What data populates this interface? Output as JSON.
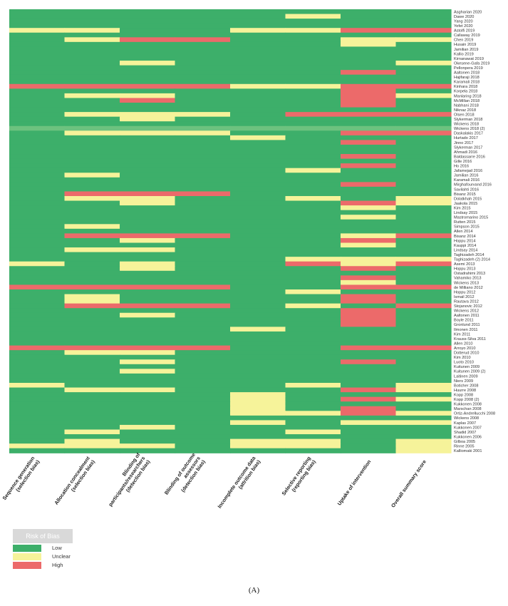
{
  "chart_data": {
    "type": "heatmap",
    "title": "",
    "columns": [
      "Sequence generation (selection bias)",
      "Allocation concealment (selection bias)",
      "Blinding of participants/researchers (detection bias)",
      "Blinding of outcome assessors (detection bias)",
      "Incomplete outcome data (attrition bias)",
      "Selective reporting (reporting bias)",
      "Uptake of intervention",
      "Overall summary score"
    ],
    "studies": [
      "Asgharian 2020",
      "Dawe 2020",
      "Yang 2020",
      "Yefet 2020",
      "Astolfi 2019",
      "Callaway 2019",
      "Chen 2019",
      "Husain 2019",
      "Jamilian 2019",
      "Kallio 2019",
      "Kirnanawat 2019",
      "Okesene-Gafa 2019",
      "Pellonpera 2019",
      "Aaltonen 2018",
      "Hajifaraji 2018",
      "Karamali 2018",
      "Kinhara 2018",
      "Korpela 2018",
      "Manlaring 2018",
      "McMillan 2018",
      "Nabhani 2018",
      "Niknaz 2018",
      "Olsen 2018",
      "Slykerman 2018",
      "Wickens 2018",
      "Wickens 2018 (2)",
      "Daskalakis 2017",
      "Hurtado 2017",
      "Jinno 2017",
      "Slykerman 2017",
      "Ahmadi 2016",
      "Baldassarre 2016",
      "Gille 2016",
      "Ho 2016",
      "Jafarnejad 2016",
      "Jamilian 2016",
      "Karamali 2016",
      "Mirghafourvand 2016",
      "Savilahti 2016",
      "Bisanz 2015",
      "Dolatkhah 2015",
      "Jaakola 2015",
      "Kim 2015",
      "Lindsay 2015",
      "Mastromarino 2015",
      "Rutten 2015",
      "Simpson 2015",
      "Allen 2014",
      "Bisanz 2014",
      "Hoppu 2014",
      "Kauppi 2014",
      "Lindsay 2014",
      "Taghizadeh 2014",
      "Taghizadeh (2) 2014",
      "Asemi 2013",
      "Hoppu 2013",
      "Ostadrahimi 2013",
      "Vahamiko 2013",
      "Wickens 2013",
      "de Milliano 2012",
      "Hoppu 2012",
      "Ismail 2012",
      "Rautava 2012",
      "Stojanovic 2012",
      "Wickens 2012",
      "Aaltonen 2011",
      "Boyle 2011",
      "Gronlund 2011",
      "Ilmonen 2011",
      "Kim 2011",
      "Krauss-Silva 2011",
      "Allen 2010",
      "Arroyo 2010",
      "Dotterud 2010",
      "Kim 2010",
      "Luoto 2010",
      "Kuitunen 2009",
      "Kuitunen 2009 (2)",
      "Laitinen 2009",
      "Niers 2009",
      "Boticher 2008",
      "Huurre 2008",
      "Kopp 2008",
      "Kopp 2008 (2)",
      "Kukkonen 2008",
      "Marschan 2008",
      "Ortiz-Andrellucchi 2008",
      "Wickens 2008",
      "Kaplas 2007",
      "Kukkonen 2007",
      "Shadid 2007",
      "Kukkonen 2006",
      "Gilboa 2005",
      "Rinne 2005",
      "Kalliomaki 2001"
    ],
    "categories": [
      "Low",
      "Unclear",
      "High"
    ],
    "colors": {
      "Low": "#3daf6a",
      "Unclear": "#f6f39a",
      "High": "#ec6a6a",
      "Highlight": "#6dc27f"
    },
    "highlighted_row": 25,
    "rows": [
      "LLLLLLLL",
      "LLLLLULL",
      "LLLLLLLL",
      "LLLLLLLL",
      "UULLUUHH",
      "LLLLLLLL",
      "LUHHLLUU",
      "LLLLLLUL",
      "LLLLLLLL",
      "LLLLLLLL",
      "LLLLLLLL",
      "LLULLLLU",
      "LLLLLLLL",
      "LLLLLLHL",
      "LLLLLLLL",
      "LLLLLLLL",
      "HHHHUUHH",
      "LLLLLLHL",
      "LUULLLHU",
      "LLHLLLHL",
      "LLLLLLHL",
      "LLLLLLLL",
      "LUUULHHH",
      "LLULLLLL",
      "LLLLLLLL",
      "LLLLLLLL",
      "LUUULLHH",
      "LLLLULLL",
      "LLLLLLHL",
      "LLLLLLLL",
      "LLLLLLLL",
      "LLLLLLHL",
      "LLLLLLLL",
      "LLLLLLHL",
      "LLLLLULL",
      "LULLLLLL",
      "LLLLLLLL",
      "LLLLLLHL",
      "LLLLLLLL",
      "LHHHLLLL",
      "LUULLULU",
      "LLULLLHU",
      "LLLLLLUL",
      "LLLLLLLL",
      "LLLLLLUL",
      "LLLLLLLL",
      "LULLLLLL",
      "LLLLLLLL",
      "LHHHLLUH",
      "LLULLLHL",
      "LLLLLLUL",
      "LUULLLLL",
      "LLLLLLLL",
      "LLLLLUUU",
      "ULULLHUH",
      "LLULLLHL",
      "LLLLLLLL",
      "LLLLLLHL",
      "LLLLLLUL",
      "HHHHLLHH",
      "LLLLLULL",
      "LULLLLHL",
      "LULLLLHL",
      "LHHHLULH",
      "LLLLLLHL",
      "LLULLLHL",
      "LLLLLLHL",
      "LLLLLLHL",
      "LLLLULLL",
      "LLLLLLLL",
      "LLLLLLLL",
      "LLLLLLLL",
      "HHHHLLHH",
      "LUULLLLL",
      "LLLLLLLL",
      "LLULLLHL",
      "LLLLLLLL",
      "LLULLLLL",
      "LLLLLLLL",
      "LLLLLLLL",
      "ULLLLULU",
      "LUULLLHU",
      "LLLLULLL",
      "LLLLULHU",
      "LLLLULLL",
      "LLLLULHL",
      "LLLLUUHU",
      "LLLLLLLL",
      "LLLLULUU",
      "LLULLLLL",
      "LULLLULL",
      "LLLLLLLL",
      "LULLUULU",
      "UUULUULU",
      "LLLLLLLU"
    ],
    "legend_title": "Risk of Bias",
    "legend_labels": [
      "Low",
      "Unclear",
      "High"
    ]
  },
  "panel_label": "(A)"
}
